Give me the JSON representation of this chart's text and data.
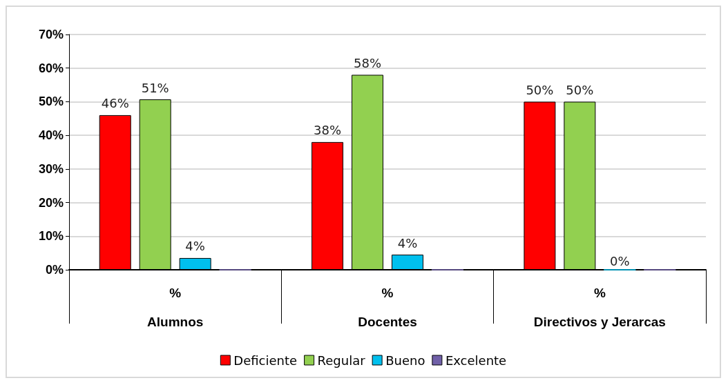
{
  "chart_data": {
    "type": "bar",
    "categories": [
      "%\nAlumnos",
      "%\nDocentes",
      "%\nDirectivos y Jerarcas"
    ],
    "series": [
      {
        "name": "Deficiente",
        "color": "#ff0000",
        "values": [
          46,
          38,
          50
        ],
        "value_labels": [
          "46%",
          "38%",
          "50%"
        ]
      },
      {
        "name": "Regular",
        "color": "#92d050",
        "values": [
          50.7,
          58,
          50
        ],
        "value_labels": [
          "51%",
          "58%",
          "50%"
        ]
      },
      {
        "name": "Bueno",
        "color": "#00c0ee",
        "values": [
          3.5,
          4.5,
          0
        ],
        "value_labels": [
          "4%",
          "4%",
          "0%"
        ]
      },
      {
        "name": "Excelente",
        "color": "#7060a8",
        "values": [
          0,
          0,
          0
        ],
        "value_labels": [
          null,
          null,
          null
        ]
      }
    ],
    "ylim": [
      0,
      70
    ],
    "yticks": [
      {
        "value": 0,
        "label": "0%"
      },
      {
        "value": 10,
        "label": "10%"
      },
      {
        "value": 20,
        "label": "20%"
      },
      {
        "value": 30,
        "label": "30%"
      },
      {
        "value": 40,
        "label": "40%"
      },
      {
        "value": 50,
        "label": "50%"
      },
      {
        "value": 60,
        "label": "60%"
      },
      {
        "value": 70,
        "label": "70%"
      }
    ],
    "grid": "y",
    "legend": "bottom"
  }
}
